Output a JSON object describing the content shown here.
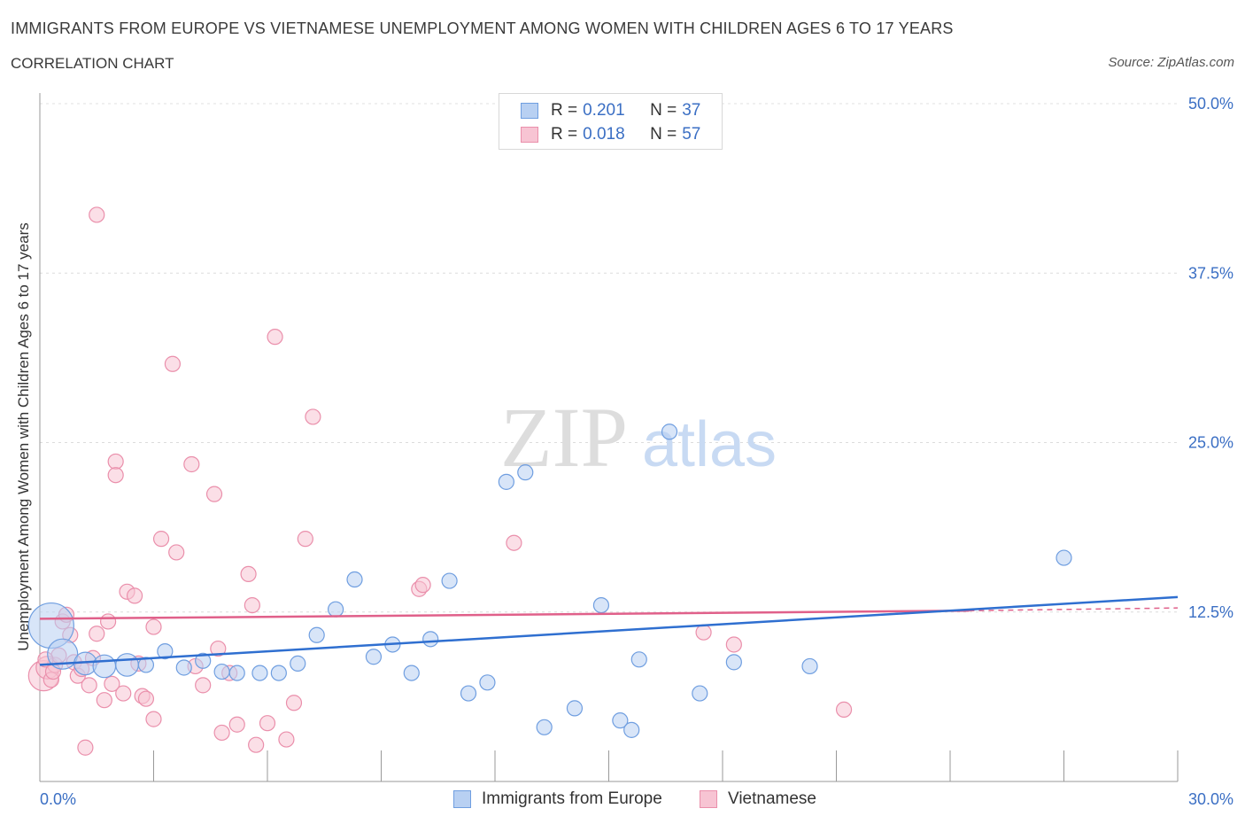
{
  "header": {
    "title": "IMMIGRANTS FROM EUROPE VS VIETNAMESE UNEMPLOYMENT AMONG WOMEN WITH CHILDREN AGES 6 TO 17 YEARS",
    "subtitle": "CORRELATION CHART",
    "source": "Source: ZipAtlas.com"
  },
  "legend": {
    "rows": [
      {
        "r_label": "R =",
        "r_value": "0.201",
        "n_label": "N =",
        "n_value": "37"
      },
      {
        "r_label": "R =",
        "r_value": "0.018",
        "n_label": "N =",
        "n_value": "57"
      }
    ]
  },
  "watermark": {
    "zip": "ZIP",
    "atlas": "atlas"
  },
  "colors": {
    "europe_fill": "#b8d0f2",
    "europe_stroke": "#6f9ee0",
    "europe_line": "#2f6fd0",
    "viet_fill": "#f7c4d3",
    "viet_stroke": "#ea8fab",
    "viet_line": "#e0608a",
    "axis_value": "#3b6fc4"
  },
  "chart_data": {
    "type": "scatter",
    "title": "IMMIGRANTS FROM EUROPE VS VIETNAMESE UNEMPLOYMENT AMONG WOMEN WITH CHILDREN AGES 6 TO 17 YEARS",
    "xlabel": "",
    "ylabel": "Unemployment Among Women with Children Ages 6 to 17 years",
    "xlim": [
      0,
      30
    ],
    "ylim": [
      0,
      50
    ],
    "x_tick_labels": [
      "0.0%",
      "30.0%"
    ],
    "y_tick_labels": [
      "12.5%",
      "25.0%",
      "37.5%",
      "50.0%"
    ],
    "y_ticks": [
      12.5,
      25.0,
      37.5,
      50.0
    ],
    "grid": true,
    "legend_position": "top-center",
    "series": [
      {
        "name": "Immigrants from Europe",
        "r": 0.201,
        "n": 37,
        "trend": {
          "x0": 0.0,
          "y0": 8.6,
          "x1": 30.0,
          "y1": 13.6
        },
        "points": [
          {
            "x": 0.3,
            "y": 11.5,
            "s": 3
          },
          {
            "x": 0.6,
            "y": 9.4,
            "s": 2
          },
          {
            "x": 1.2,
            "y": 8.7,
            "s": 1.5
          },
          {
            "x": 1.7,
            "y": 8.5,
            "s": 1.5
          },
          {
            "x": 2.3,
            "y": 8.6,
            "s": 1.5
          },
          {
            "x": 2.8,
            "y": 8.6,
            "s": 1
          },
          {
            "x": 3.3,
            "y": 9.6,
            "s": 1
          },
          {
            "x": 3.8,
            "y": 8.4,
            "s": 1
          },
          {
            "x": 4.3,
            "y": 8.9,
            "s": 1
          },
          {
            "x": 4.8,
            "y": 8.1,
            "s": 1
          },
          {
            "x": 5.2,
            "y": 8.0,
            "s": 1
          },
          {
            "x": 5.8,
            "y": 8.0,
            "s": 1
          },
          {
            "x": 6.3,
            "y": 8.0,
            "s": 1
          },
          {
            "x": 6.8,
            "y": 8.7,
            "s": 1
          },
          {
            "x": 7.3,
            "y": 10.8,
            "s": 1
          },
          {
            "x": 7.8,
            "y": 12.7,
            "s": 1
          },
          {
            "x": 8.3,
            "y": 14.9,
            "s": 1
          },
          {
            "x": 8.8,
            "y": 9.2,
            "s": 1
          },
          {
            "x": 9.3,
            "y": 10.1,
            "s": 1
          },
          {
            "x": 9.8,
            "y": 8.0,
            "s": 1
          },
          {
            "x": 10.3,
            "y": 10.5,
            "s": 1
          },
          {
            "x": 10.8,
            "y": 14.8,
            "s": 1
          },
          {
            "x": 11.3,
            "y": 6.5,
            "s": 1
          },
          {
            "x": 11.8,
            "y": 7.3,
            "s": 1
          },
          {
            "x": 12.3,
            "y": 22.1,
            "s": 1
          },
          {
            "x": 12.8,
            "y": 22.8,
            "s": 1
          },
          {
            "x": 13.3,
            "y": 4.0,
            "s": 1
          },
          {
            "x": 14.1,
            "y": 5.4,
            "s": 1
          },
          {
            "x": 14.8,
            "y": 13.0,
            "s": 1
          },
          {
            "x": 15.3,
            "y": 4.5,
            "s": 1
          },
          {
            "x": 15.6,
            "y": 3.8,
            "s": 1
          },
          {
            "x": 15.8,
            "y": 9.0,
            "s": 1
          },
          {
            "x": 16.6,
            "y": 25.8,
            "s": 1
          },
          {
            "x": 17.4,
            "y": 6.5,
            "s": 1
          },
          {
            "x": 18.3,
            "y": 8.8,
            "s": 1
          },
          {
            "x": 20.3,
            "y": 8.5,
            "s": 1
          },
          {
            "x": 27.0,
            "y": 16.5,
            "s": 1
          }
        ]
      },
      {
        "name": "Vietnamese",
        "r": 0.018,
        "n": 57,
        "trend": {
          "x0": 0.0,
          "y0": 12.0,
          "x1": 24.5,
          "y1": 12.6,
          "dash_to_x": 30.0,
          "dash_to_y": 12.8
        },
        "points": [
          {
            "x": 0.1,
            "y": 7.8,
            "s": 2
          },
          {
            "x": 0.2,
            "y": 8.4,
            "s": 1.5
          },
          {
            "x": 0.3,
            "y": 7.5,
            "s": 1
          },
          {
            "x": 0.4,
            "y": 8.6,
            "s": 1
          },
          {
            "x": 0.5,
            "y": 9.3,
            "s": 1
          },
          {
            "x": 0.6,
            "y": 11.8,
            "s": 1
          },
          {
            "x": 0.7,
            "y": 12.3,
            "s": 1
          },
          {
            "x": 0.8,
            "y": 10.8,
            "s": 1
          },
          {
            "x": 0.9,
            "y": 8.8,
            "s": 1
          },
          {
            "x": 1.0,
            "y": 7.8,
            "s": 1
          },
          {
            "x": 1.2,
            "y": 2.5,
            "s": 1
          },
          {
            "x": 1.3,
            "y": 7.1,
            "s": 1
          },
          {
            "x": 1.4,
            "y": 9.1,
            "s": 1
          },
          {
            "x": 1.5,
            "y": 10.9,
            "s": 1
          },
          {
            "x": 1.7,
            "y": 6.0,
            "s": 1
          },
          {
            "x": 1.8,
            "y": 11.8,
            "s": 1
          },
          {
            "x": 1.9,
            "y": 7.2,
            "s": 1
          },
          {
            "x": 2.0,
            "y": 23.6,
            "s": 1
          },
          {
            "x": 2.0,
            "y": 22.6,
            "s": 1
          },
          {
            "x": 2.2,
            "y": 6.5,
            "s": 1
          },
          {
            "x": 2.3,
            "y": 14.0,
            "s": 1
          },
          {
            "x": 2.5,
            "y": 13.7,
            "s": 1
          },
          {
            "x": 2.6,
            "y": 8.7,
            "s": 1
          },
          {
            "x": 2.7,
            "y": 6.3,
            "s": 1
          },
          {
            "x": 2.8,
            "y": 6.1,
            "s": 1
          },
          {
            "x": 3.0,
            "y": 4.6,
            "s": 1
          },
          {
            "x": 3.0,
            "y": 11.4,
            "s": 1
          },
          {
            "x": 3.2,
            "y": 17.9,
            "s": 1
          },
          {
            "x": 3.5,
            "y": 30.8,
            "s": 1
          },
          {
            "x": 3.6,
            "y": 16.9,
            "s": 1
          },
          {
            "x": 4.0,
            "y": 23.4,
            "s": 1
          },
          {
            "x": 4.1,
            "y": 8.5,
            "s": 1
          },
          {
            "x": 4.3,
            "y": 7.1,
            "s": 1
          },
          {
            "x": 4.6,
            "y": 21.2,
            "s": 1
          },
          {
            "x": 4.7,
            "y": 9.8,
            "s": 1
          },
          {
            "x": 4.8,
            "y": 3.6,
            "s": 1
          },
          {
            "x": 5.0,
            "y": 8.0,
            "s": 1
          },
          {
            "x": 5.2,
            "y": 4.2,
            "s": 1
          },
          {
            "x": 5.5,
            "y": 15.3,
            "s": 1
          },
          {
            "x": 5.6,
            "y": 13.0,
            "s": 1
          },
          {
            "x": 5.7,
            "y": 2.7,
            "s": 1
          },
          {
            "x": 6.0,
            "y": 4.3,
            "s": 1
          },
          {
            "x": 6.2,
            "y": 32.8,
            "s": 1
          },
          {
            "x": 6.5,
            "y": 3.1,
            "s": 1
          },
          {
            "x": 6.7,
            "y": 5.8,
            "s": 1
          },
          {
            "x": 7.0,
            "y": 17.9,
            "s": 1
          },
          {
            "x": 7.2,
            "y": 26.9,
            "s": 1
          },
          {
            "x": 1.5,
            "y": 41.8,
            "s": 1
          },
          {
            "x": 10.0,
            "y": 14.2,
            "s": 1
          },
          {
            "x": 10.1,
            "y": 14.5,
            "s": 1
          },
          {
            "x": 12.5,
            "y": 17.6,
            "s": 1
          },
          {
            "x": 17.5,
            "y": 11.0,
            "s": 1
          },
          {
            "x": 18.3,
            "y": 10.1,
            "s": 1
          },
          {
            "x": 21.2,
            "y": 5.3,
            "s": 1
          },
          {
            "x": 0.15,
            "y": 9.0,
            "s": 1
          },
          {
            "x": 0.35,
            "y": 8.1,
            "s": 1
          },
          {
            "x": 1.1,
            "y": 8.3,
            "s": 1
          }
        ]
      }
    ]
  },
  "bottom_legend": {
    "items": [
      {
        "label": "Immigrants from Europe"
      },
      {
        "label": "Vietnamese"
      }
    ]
  }
}
